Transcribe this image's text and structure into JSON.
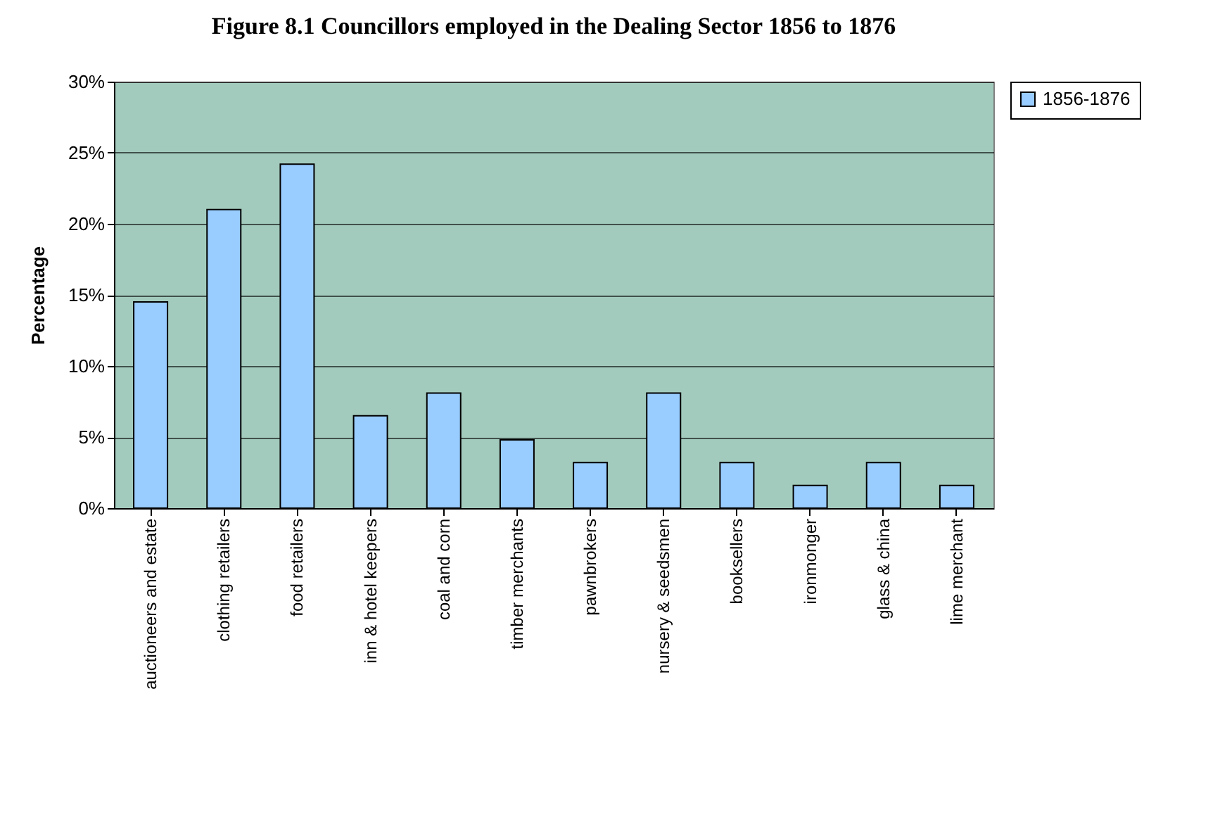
{
  "chart_data": {
    "type": "bar",
    "title": "Figure 8.1 Councillors employed in the Dealing Sector 1856 to 1876",
    "ylabel": "Percentage",
    "categories": [
      "auctioneers and estate",
      "clothing retailers",
      "food retailers",
      "inn & hotel keepers",
      "coal and corn",
      "timber merchants",
      "pawnbrokers",
      "nursery & seedsmen",
      "booksellers",
      "ironmonger",
      "glass & china",
      "lime merchant"
    ],
    "series": [
      {
        "name": "1856-1876",
        "color": "#99ccff",
        "values": [
          14.5,
          21.0,
          24.2,
          6.5,
          8.1,
          4.8,
          3.2,
          8.1,
          3.2,
          1.6,
          3.2,
          1.6
        ]
      }
    ],
    "ylim": [
      0,
      30
    ],
    "yticks": [
      {
        "value": 0,
        "label": "0%"
      },
      {
        "value": 5,
        "label": "5%"
      },
      {
        "value": 10,
        "label": "10%"
      },
      {
        "value": 15,
        "label": "15%"
      },
      {
        "value": 20,
        "label": "20%"
      },
      {
        "value": 25,
        "label": "25%"
      },
      {
        "value": 30,
        "label": "30%"
      }
    ],
    "grid": "y",
    "legend": "right"
  }
}
